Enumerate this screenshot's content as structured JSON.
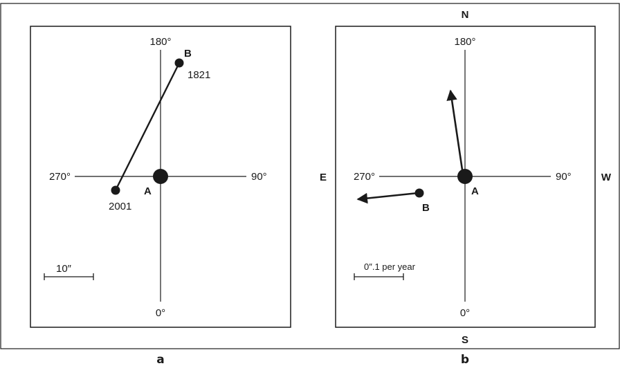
{
  "panel_a": {
    "axis": {
      "top": "180°",
      "bottom": "0°",
      "left": "270°",
      "right": "90°"
    },
    "star_a": "A",
    "star_b": "B",
    "year_b": "1821",
    "year_end": "2001",
    "scale_label": "10″",
    "caption": "a"
  },
  "panel_b": {
    "axis": {
      "top": "180°",
      "bottom": "0°",
      "left": "270°",
      "right": "90°"
    },
    "direction": {
      "north": "N",
      "south": "S",
      "east": "E",
      "west": "W"
    },
    "star_a": "A",
    "star_b": "B",
    "scale_label": "0″.1 per year",
    "caption": "b"
  }
}
